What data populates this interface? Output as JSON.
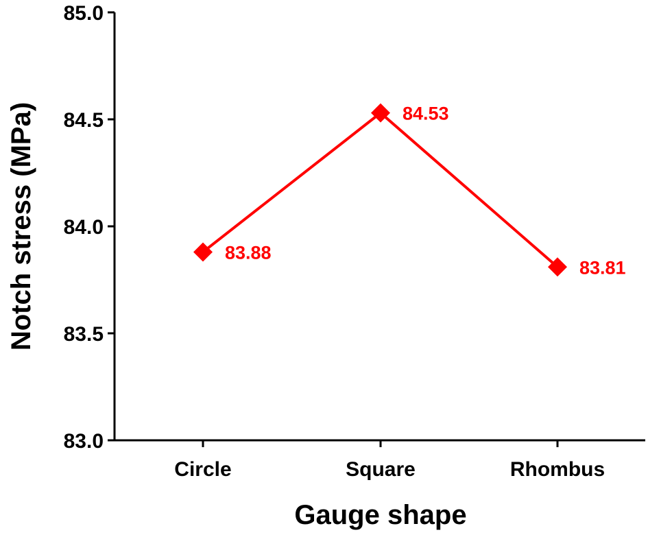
{
  "chart_data": {
    "type": "line",
    "title": "",
    "xlabel": "Gauge shape",
    "ylabel": "Notch stress (MPa)",
    "categories": [
      "Circle",
      "Square",
      "Rhombus"
    ],
    "series": [
      {
        "values": [
          83.88,
          84.53,
          83.81
        ],
        "color": "#ff0000",
        "marker": "diamond"
      }
    ],
    "data_labels": [
      "83.88",
      "84.53",
      "83.81"
    ],
    "ylim": [
      83.0,
      85.0
    ],
    "yticks": [
      83.0,
      83.5,
      84.0,
      84.5,
      85.0
    ],
    "ytick_labels": [
      "83.0",
      "83.5",
      "84.0",
      "84.5",
      "85.0"
    ],
    "grid": false,
    "legend": "none"
  }
}
